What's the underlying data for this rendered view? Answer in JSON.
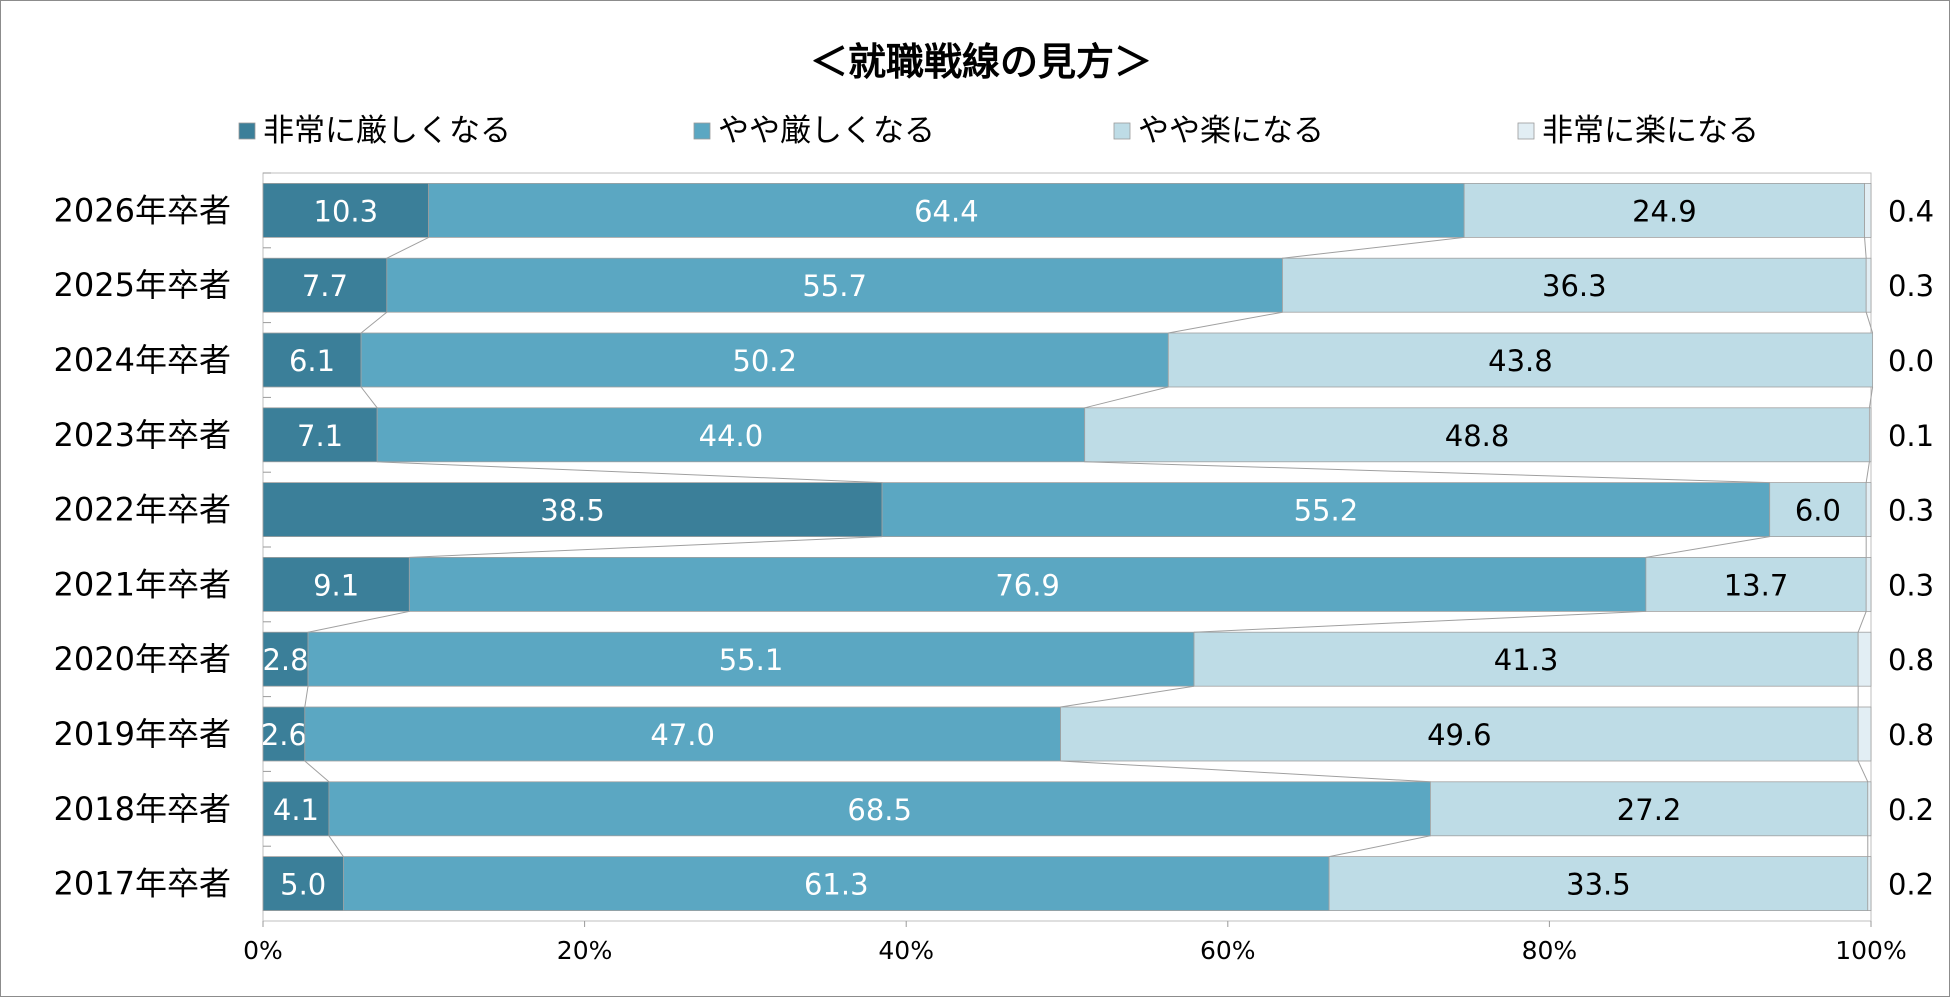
{
  "chart_data": {
    "type": "bar",
    "orientation": "horizontal",
    "stacked": "percent",
    "title": "＜就職戦線の見方＞",
    "categories": [
      "2026年卒者",
      "2025年卒者",
      "2024年卒者",
      "2023年卒者",
      "2022年卒者",
      "2021年卒者",
      "2020年卒者",
      "2019年卒者",
      "2018年卒者",
      "2017年卒者"
    ],
    "series": [
      {
        "name": "非常に厳しくなる",
        "color": "#3b7f99",
        "label_color": "#ffffff",
        "values": [
          10.3,
          7.7,
          6.1,
          7.1,
          38.5,
          9.1,
          2.8,
          2.6,
          4.1,
          5.0
        ],
        "labels": [
          "10.3",
          "7.7",
          "6.1",
          "7.1",
          "38.5",
          "9.1",
          "2.8",
          "2.6",
          "4.1",
          "5.0"
        ]
      },
      {
        "name": "やや厳しくなる",
        "color": "#5ba7c2",
        "label_color": "#ffffff",
        "values": [
          64.4,
          55.7,
          50.2,
          44.0,
          55.2,
          76.9,
          55.1,
          47.0,
          68.5,
          61.3
        ],
        "labels": [
          "64.4",
          "55.7",
          "50.2",
          "44.0",
          "55.2",
          "76.9",
          "55.1",
          "47.0",
          "68.5",
          "61.3"
        ]
      },
      {
        "name": "やや楽になる",
        "color": "#bedce6",
        "label_color": "#000000",
        "values": [
          24.9,
          36.3,
          43.8,
          48.8,
          6.0,
          13.7,
          41.3,
          49.6,
          27.2,
          33.5
        ],
        "labels": [
          "24.9",
          "36.3",
          "43.8",
          "48.8",
          "6.0",
          "13.7",
          "41.3",
          "49.6",
          "27.2",
          "33.5"
        ]
      },
      {
        "name": "非常に楽になる",
        "color": "#e2eef4",
        "label_color": "#000000",
        "values": [
          0.4,
          0.3,
          0.0,
          0.1,
          0.3,
          0.3,
          0.8,
          0.8,
          0.2,
          0.2
        ],
        "labels": [
          "0.4",
          "0.3",
          "0.0",
          "0.1",
          "0.3",
          "0.3",
          "0.8",
          "0.8",
          "0.2",
          "0.2"
        ],
        "labels_outside": true
      }
    ],
    "x_ticks": [
      "0%",
      "20%",
      "40%",
      "60%",
      "80%",
      "100%"
    ],
    "xlim": [
      0,
      100
    ],
    "legend_position": "top",
    "grid": false,
    "series_lines": true
  }
}
